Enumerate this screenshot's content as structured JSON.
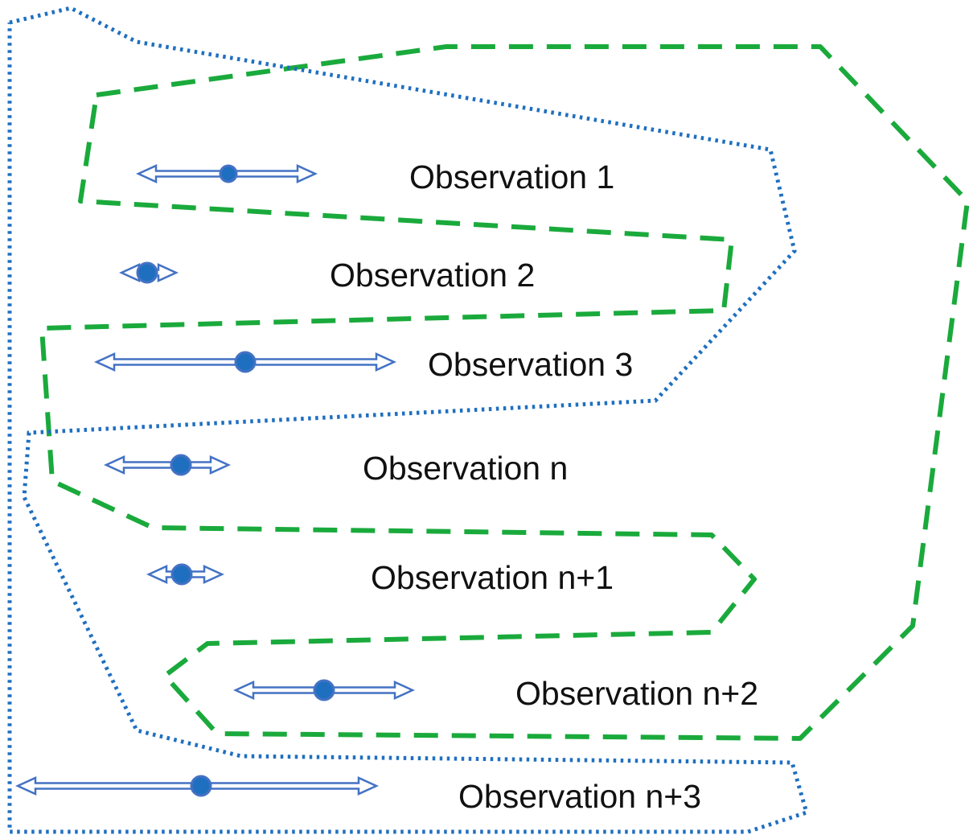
{
  "colors": {
    "green_boundary": "#1aaa3c",
    "blue_boundary": "#1f6fc0",
    "arrow_stroke": "#4472c4",
    "point_fill": "#1f6fc0",
    "point_edge": "#4472c4",
    "label_text": "#111111"
  },
  "observations": [
    {
      "label": "Observation 1"
    },
    {
      "label": "Observation 2"
    },
    {
      "label": "Observation 3"
    },
    {
      "label": "Observation n"
    },
    {
      "label": "Observation n+1"
    },
    {
      "label": "Observation n+2"
    },
    {
      "label": "Observation n+3"
    }
  ],
  "boundaries": [
    {
      "style": "dashed",
      "color_key": "green_boundary"
    },
    {
      "style": "dotted",
      "color_key": "blue_boundary"
    }
  ]
}
